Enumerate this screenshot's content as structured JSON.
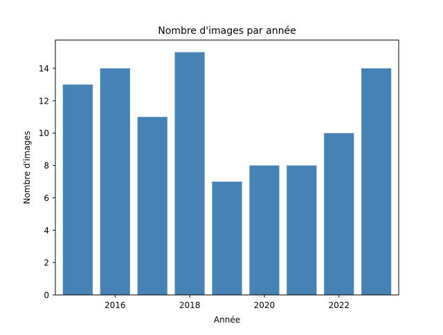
{
  "chart_data": {
    "type": "bar",
    "title": "Nombre d'images par année",
    "xlabel": "Année",
    "ylabel": "Nombre d'images",
    "x": [
      2015,
      2016,
      2017,
      2018,
      2019,
      2020,
      2021,
      2022,
      2023
    ],
    "values": [
      13,
      14,
      11,
      15,
      7,
      8,
      8,
      10,
      14
    ],
    "xlim": [
      2014.4,
      2023.6
    ],
    "ylim": [
      0,
      15.75
    ],
    "xticks": [
      2016,
      2018,
      2020,
      2022
    ],
    "xtick_labels": [
      "2016",
      "2018",
      "2020",
      "2022"
    ],
    "yticks": [
      0,
      2,
      4,
      6,
      8,
      10,
      12,
      14
    ],
    "ytick_labels": [
      "0",
      "2",
      "4",
      "6",
      "8",
      "10",
      "12",
      "14"
    ],
    "bar_color": "#4682b4",
    "grid": false,
    "legend": "none"
  }
}
